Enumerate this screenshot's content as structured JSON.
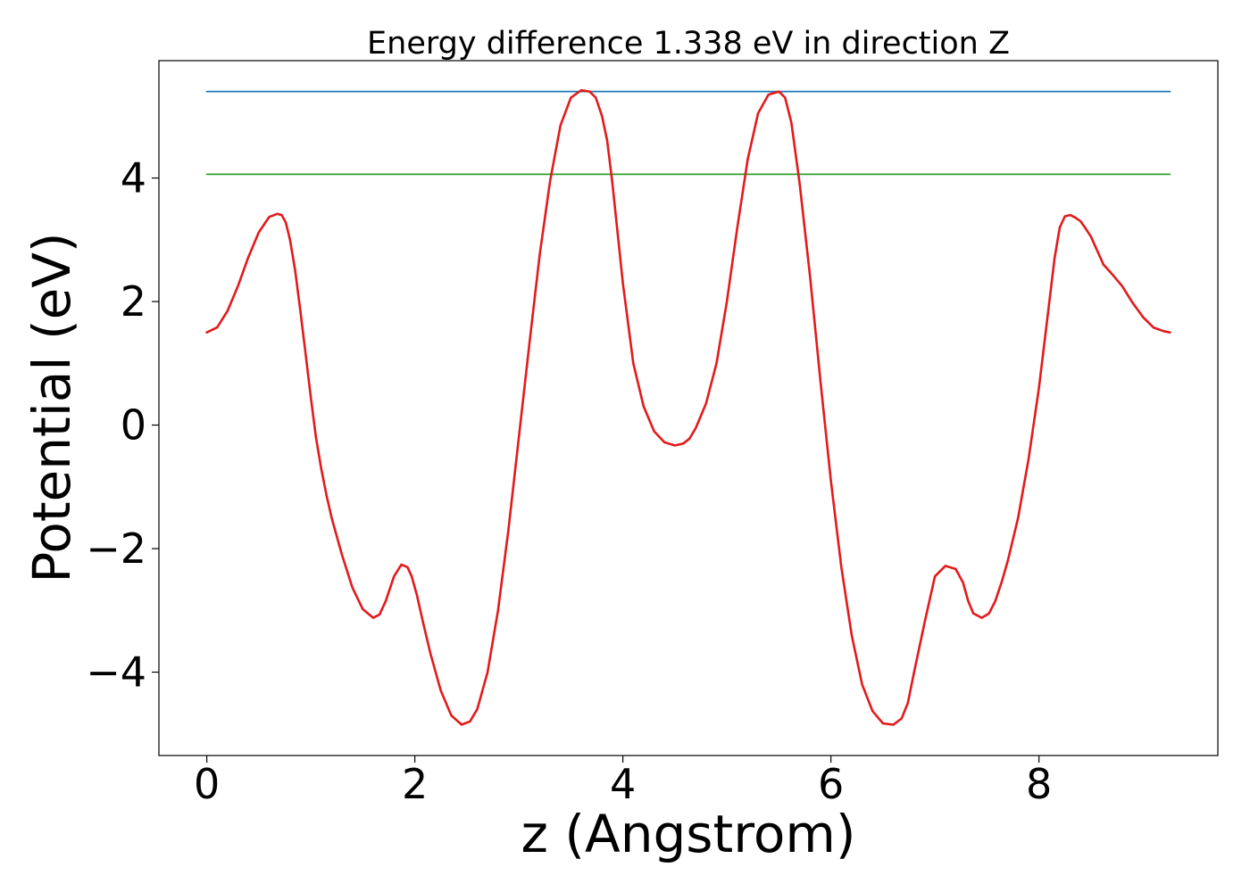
{
  "chart_data": {
    "type": "line",
    "title": "Energy difference 1.338 eV in direction Z",
    "xlabel": "z (Angstrom)",
    "ylabel": "Potential (eV)",
    "xlim": [
      -0.46,
      9.72
    ],
    "ylim": [
      -5.35,
      5.9
    ],
    "x_ticks": [
      0,
      2,
      4,
      6,
      8
    ],
    "y_ticks": [
      -4,
      -2,
      0,
      2,
      4
    ],
    "x_tick_labels": [
      "0",
      "2",
      "4",
      "6",
      "8"
    ],
    "y_tick_labels": [
      "−4",
      "−2",
      "0",
      "2",
      "4"
    ],
    "grid": false,
    "series": [
      {
        "color": "#1f77b4",
        "x": [
          0,
          9.26
        ],
        "y": [
          5.4,
          5.4
        ]
      },
      {
        "color": "#2ca02c",
        "x": [
          0,
          9.26
        ],
        "y": [
          4.06,
          4.06
        ]
      },
      {
        "color": "#e31a1c",
        "x": [
          0,
          0.1,
          0.2,
          0.3,
          0.4,
          0.5,
          0.6,
          0.68,
          0.72,
          0.76,
          0.8,
          0.85,
          0.9,
          0.95,
          1.0,
          1.05,
          1.1,
          1.15,
          1.2,
          1.3,
          1.4,
          1.5,
          1.6,
          1.66,
          1.72,
          1.8,
          1.87,
          1.93,
          1.97,
          2.02,
          2.08,
          2.15,
          2.25,
          2.35,
          2.45,
          2.53,
          2.6,
          2.7,
          2.8,
          2.9,
          3.0,
          3.1,
          3.2,
          3.3,
          3.4,
          3.5,
          3.6,
          3.68,
          3.74,
          3.8,
          3.85,
          3.9,
          4.0,
          4.1,
          4.2,
          4.3,
          4.4,
          4.5,
          4.58,
          4.64,
          4.7,
          4.8,
          4.9,
          5.0,
          5.1,
          5.2,
          5.3,
          5.4,
          5.5,
          5.56,
          5.62,
          5.7,
          5.8,
          5.9,
          6.0,
          6.1,
          6.2,
          6.3,
          6.4,
          6.5,
          6.6,
          6.68,
          6.74,
          6.8,
          6.9,
          7.0,
          7.1,
          7.2,
          7.27,
          7.32,
          7.37,
          7.45,
          7.52,
          7.58,
          7.64,
          7.7,
          7.8,
          7.9,
          8.0,
          8.1,
          8.15,
          8.2,
          8.25,
          8.3,
          8.35,
          8.4,
          8.45,
          8.5,
          8.54,
          8.58,
          8.62,
          8.7,
          8.8,
          8.9,
          9.0,
          9.1,
          9.2,
          9.26
        ],
        "y": [
          1.5,
          1.58,
          1.85,
          2.25,
          2.72,
          3.12,
          3.37,
          3.42,
          3.4,
          3.28,
          3.0,
          2.5,
          1.85,
          1.15,
          0.45,
          -0.2,
          -0.7,
          -1.13,
          -1.5,
          -2.1,
          -2.63,
          -2.98,
          -3.12,
          -3.07,
          -2.85,
          -2.45,
          -2.26,
          -2.3,
          -2.45,
          -2.75,
          -3.2,
          -3.7,
          -4.3,
          -4.7,
          -4.85,
          -4.8,
          -4.6,
          -4.0,
          -3.0,
          -1.7,
          -0.2,
          1.3,
          2.75,
          3.95,
          4.85,
          5.3,
          5.42,
          5.4,
          5.3,
          5.0,
          4.6,
          3.9,
          2.3,
          1.0,
          0.3,
          -0.1,
          -0.28,
          -0.33,
          -0.3,
          -0.22,
          -0.05,
          0.35,
          1.0,
          2.0,
          3.2,
          4.3,
          5.05,
          5.35,
          5.4,
          5.3,
          4.9,
          3.9,
          2.4,
          0.7,
          -0.9,
          -2.3,
          -3.4,
          -4.2,
          -4.63,
          -4.83,
          -4.85,
          -4.75,
          -4.5,
          -4.0,
          -3.2,
          -2.45,
          -2.28,
          -2.33,
          -2.55,
          -2.85,
          -3.05,
          -3.12,
          -3.05,
          -2.85,
          -2.55,
          -2.2,
          -1.5,
          -0.55,
          0.6,
          2.0,
          2.7,
          3.2,
          3.38,
          3.4,
          3.36,
          3.3,
          3.18,
          3.05,
          2.9,
          2.75,
          2.6,
          2.45,
          2.25,
          1.98,
          1.75,
          1.58,
          1.52,
          1.5
        ]
      }
    ]
  }
}
